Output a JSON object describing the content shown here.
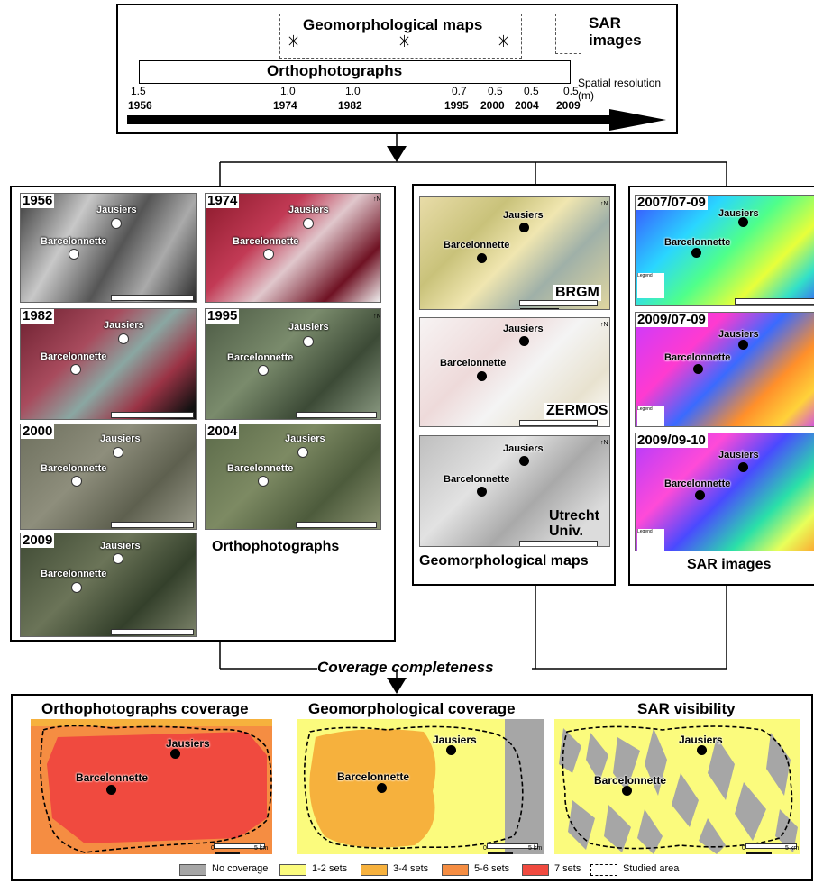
{
  "timeline": {
    "geomorph_title": "Geomorphological maps",
    "sar_title": "SAR images",
    "ortho_title": "Orthophotographs",
    "resolution_label": "Spatial resolution (m)",
    "resolutions": [
      "1.5",
      "1.0",
      "1.0",
      "0.7",
      "0.5",
      "0.5",
      "0.5"
    ],
    "years": [
      "1956",
      "1974",
      "1982",
      "1995",
      "2000",
      "2004",
      "2009"
    ],
    "star_glyph": "✳"
  },
  "ortho": {
    "caption": "Orthophotographs",
    "panels": [
      {
        "year": "1956",
        "style": "bw"
      },
      {
        "year": "1974",
        "style": "ir"
      },
      {
        "year": "1982",
        "style": "ir"
      },
      {
        "year": "1995",
        "style": "green"
      },
      {
        "year": "2000",
        "style": "gray"
      },
      {
        "year": "2004",
        "style": "green"
      },
      {
        "year": "2009",
        "style": "dark"
      }
    ]
  },
  "geomorph": {
    "caption": "Geomorphological maps",
    "maps": [
      {
        "label": "BRGM"
      },
      {
        "label": "ZERMOS"
      },
      {
        "label": "Utrecht Univ."
      }
    ]
  },
  "sar": {
    "caption": "SAR images",
    "panels": [
      {
        "date": "2007/07-09"
      },
      {
        "date": "2009/07-09"
      },
      {
        "date": "2009/09-10"
      }
    ],
    "legend_title": "Legend"
  },
  "places": {
    "north": "Jausiers",
    "south": "Barcelonnette"
  },
  "coverage_label": "Coverage completeness",
  "bottom": {
    "maps": [
      {
        "title": "Orthophotographs coverage"
      },
      {
        "title": "Geomorphological coverage"
      },
      {
        "title": "SAR visibility"
      }
    ],
    "scale_labels": [
      "0",
      "5 km"
    ],
    "legend": [
      {
        "label": "No coverage",
        "color": "#a6a6a6"
      },
      {
        "label": "1-2 sets",
        "color": "#fbfb7d"
      },
      {
        "label": "3-4 sets",
        "color": "#f6b13d"
      },
      {
        "label": "5-6 sets",
        "color": "#f58d42"
      },
      {
        "label": "7 sets",
        "color": "#f04a3f"
      },
      {
        "label": "Studied area",
        "color": "#ffffff"
      }
    ]
  }
}
